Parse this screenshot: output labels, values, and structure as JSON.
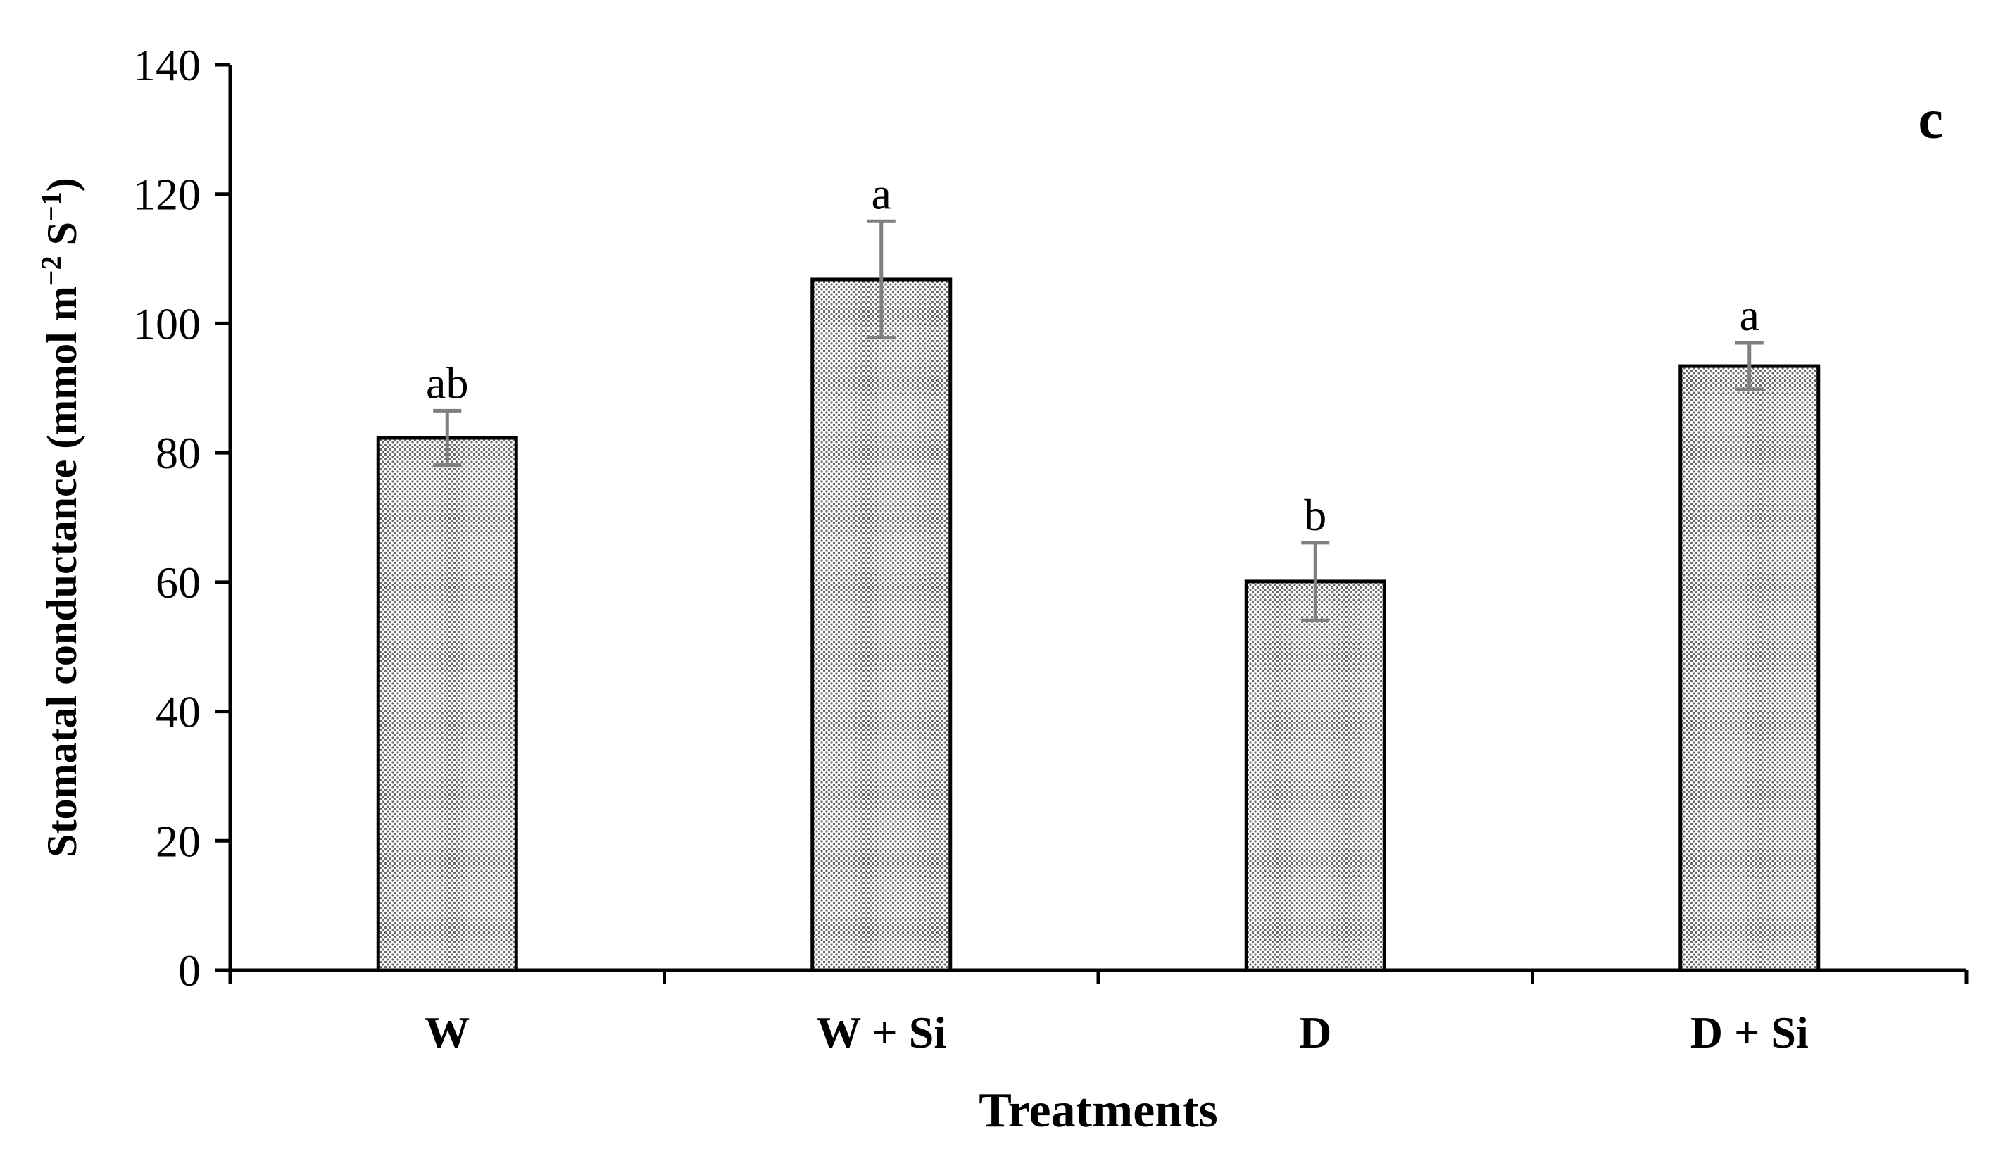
{
  "chart_data": {
    "type": "bar",
    "title": "",
    "panel_label": "c",
    "xlabel": "Treatments",
    "ylabel": "Stomatal conductance (mmol m−2 S−1)",
    "ylabel_parts": {
      "main": "Stomatal conductance (mmol m",
      "exp1": "−2",
      "mid": " S",
      "exp2": "−1",
      "end": ")"
    },
    "categories": [
      "W",
      "W + Si",
      "D",
      "D + Si"
    ],
    "values": [
      82.3,
      106.8,
      60.1,
      93.4
    ],
    "errors": [
      4.2,
      9.0,
      6.0,
      3.6
    ],
    "significance": [
      "ab",
      "a",
      "b",
      "a"
    ],
    "ylim": [
      0,
      140
    ],
    "yticks": [
      0,
      20,
      40,
      60,
      80,
      100,
      120,
      140
    ],
    "grid": false,
    "legend": "none",
    "colors": {
      "bar_fill_bg": "#ffffff",
      "bar_fill_dot": "#6a6a6a",
      "bar_edge": "#000000",
      "error_bar": "#7f7f7f",
      "axis": "#000000"
    }
  }
}
